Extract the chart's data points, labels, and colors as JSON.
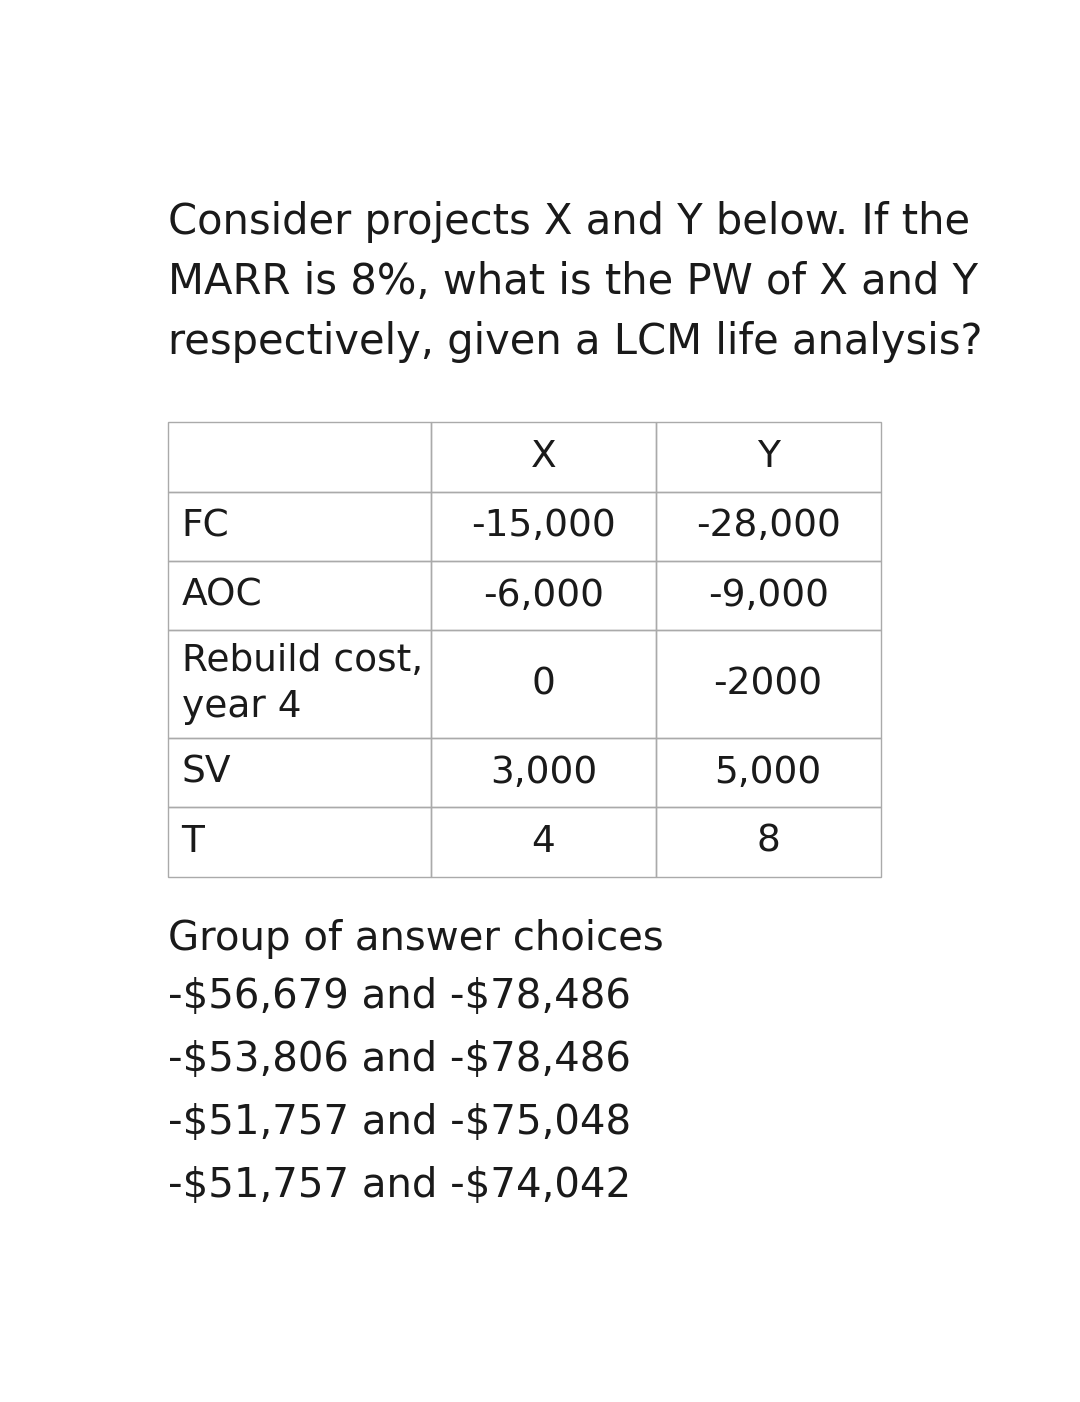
{
  "title_text": "Consider projects X and Y below. If the\nMARR is 8%, what is the PW of X and Y\nrespectively, given a LCM life analysis?",
  "table_headers": [
    "",
    "X",
    "Y"
  ],
  "table_rows": [
    [
      "FC",
      "-15,000",
      "-28,000"
    ],
    [
      "AOC",
      "-6,000",
      "-9,000"
    ],
    [
      "Rebuild cost,\nyear 4",
      "0",
      "-2000"
    ],
    [
      "SV",
      "3,000",
      "5,000"
    ],
    [
      "T",
      "4",
      "8"
    ]
  ],
  "group_label": "Group of answer choices",
  "choices": [
    "-\\$56,679 and -\\$78,486",
    "-\\$53,806 and -\\$78,486",
    "-\\$51,757 and -\\$75,048",
    "-\\$51,757 and -\\$74,042"
  ],
  "bg_color": "#ffffff",
  "text_color": "#1a1a1a",
  "border_color": "#aaaaaa",
  "title_fontsize": 30,
  "table_fontsize": 27,
  "choices_fontsize": 29,
  "group_label_fontsize": 29
}
